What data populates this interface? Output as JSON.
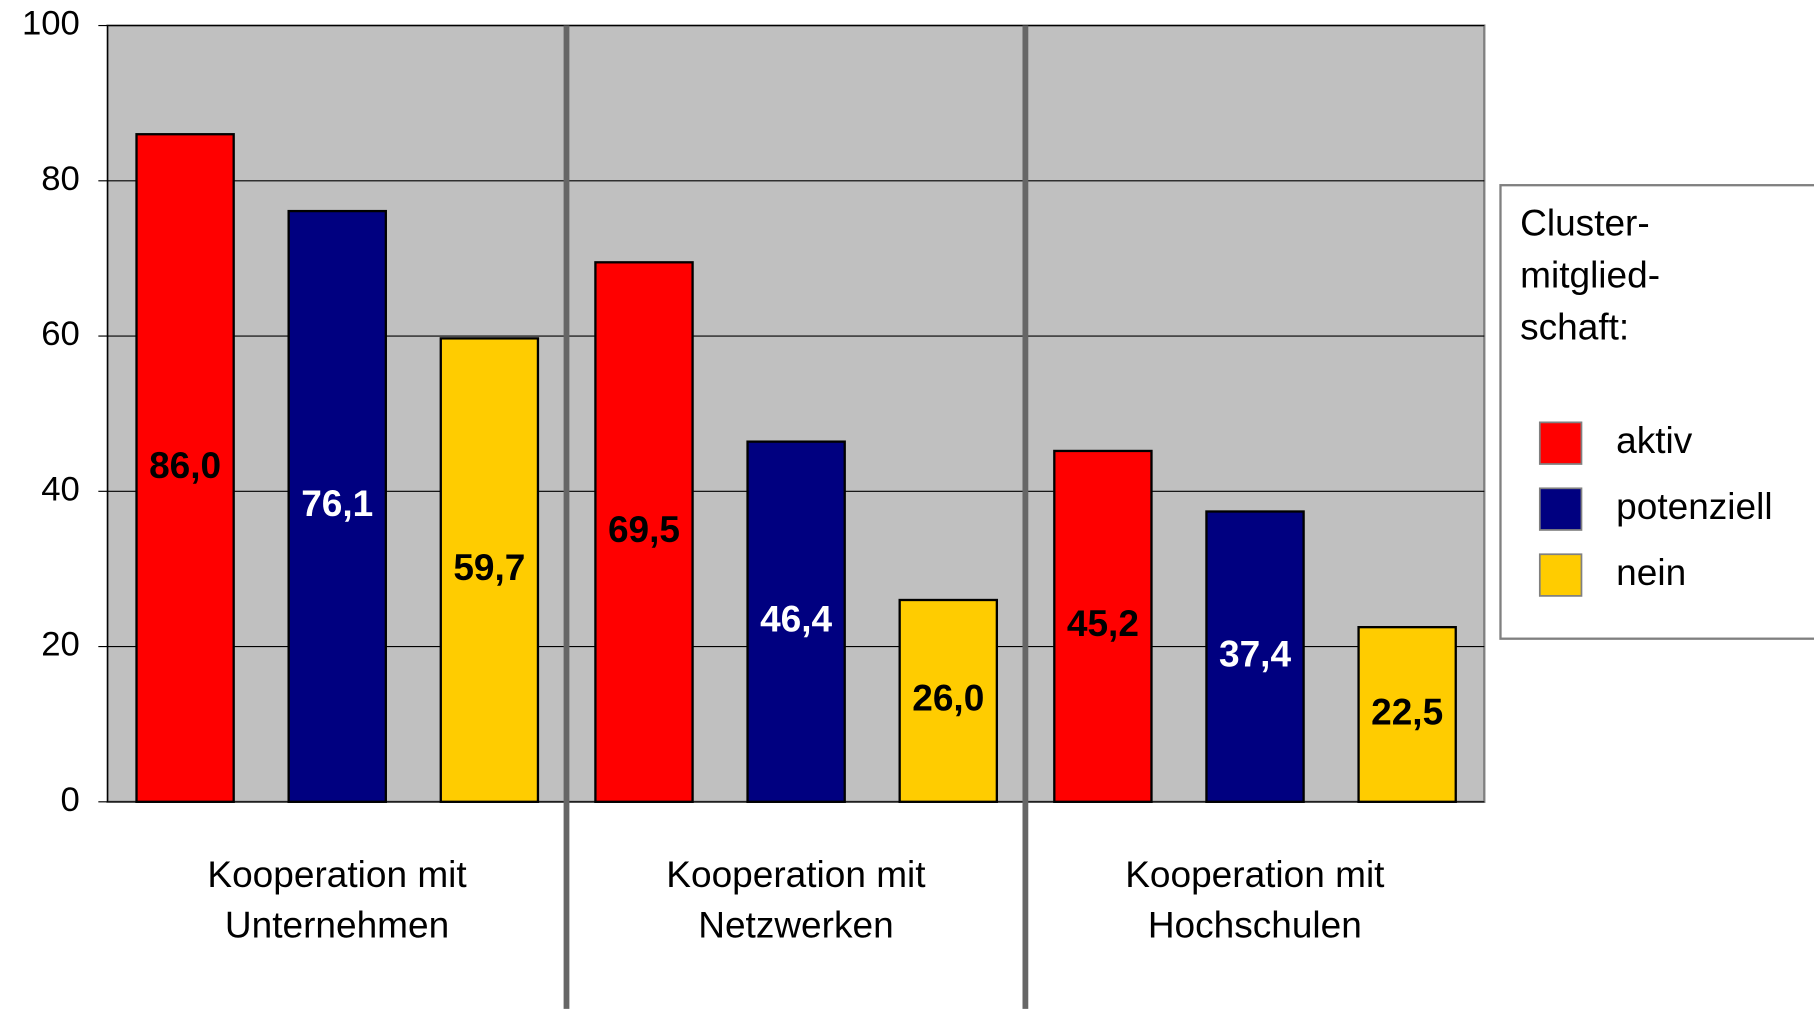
{
  "chart_data": {
    "type": "bar",
    "categories": [
      [
        "Kooperation mit",
        "Unternehmen"
      ],
      [
        "Kooperation mit",
        "Netzwerken"
      ],
      [
        "Kooperation mit",
        "Hochschulen"
      ]
    ],
    "series": [
      {
        "name": "aktiv",
        "color": "#ff0000",
        "label_color": "#000000",
        "values": [
          86.0,
          69.5,
          45.2
        ],
        "value_labels": [
          "86,0",
          "69,5",
          "45,2"
        ]
      },
      {
        "name": "potenziell",
        "color": "#000080",
        "label_color": "#ffffff",
        "values": [
          76.1,
          46.4,
          37.4
        ],
        "value_labels": [
          "76,1",
          "46,4",
          "37,4"
        ]
      },
      {
        "name": "nein",
        "color": "#ffcc00",
        "label_color": "#000000",
        "values": [
          59.7,
          26.0,
          22.5
        ],
        "value_labels": [
          "59,7",
          "26,0",
          "22,5"
        ]
      }
    ],
    "legend_title": [
      "Cluster-",
      "mitglied-",
      "schaft:"
    ],
    "ylim": [
      0,
      100
    ],
    "yticks": [
      0,
      20,
      40,
      60,
      80,
      100
    ],
    "grid": true,
    "legend": "right"
  }
}
